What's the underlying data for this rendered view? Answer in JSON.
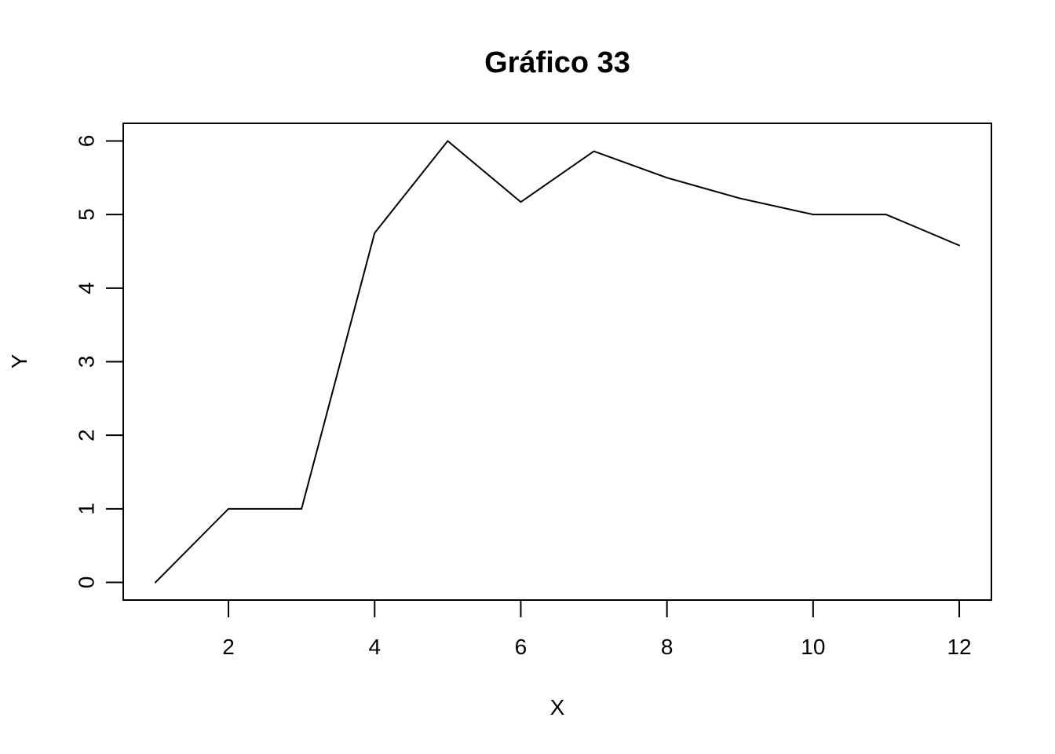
{
  "chart_data": {
    "type": "line",
    "title": "Gráfico 33",
    "xlabel": "X",
    "ylabel": "Y",
    "x": [
      1,
      2,
      3,
      4,
      5,
      6,
      7,
      8,
      9,
      10,
      11,
      12
    ],
    "series": [
      {
        "values": [
          0,
          1,
          1,
          4.75,
          6,
          5.17,
          5.86,
          5.5,
          5.22,
          5,
          5,
          4.58
        ],
        "color": "#000000"
      }
    ],
    "xlim": [
      0.56,
      12.44
    ],
    "ylim": [
      -0.24,
      6.24
    ],
    "xticks": [
      2,
      4,
      6,
      8,
      10,
      12
    ],
    "yticks": [
      0,
      1,
      2,
      3,
      4,
      5,
      6
    ],
    "grid": false,
    "legend": "none"
  }
}
